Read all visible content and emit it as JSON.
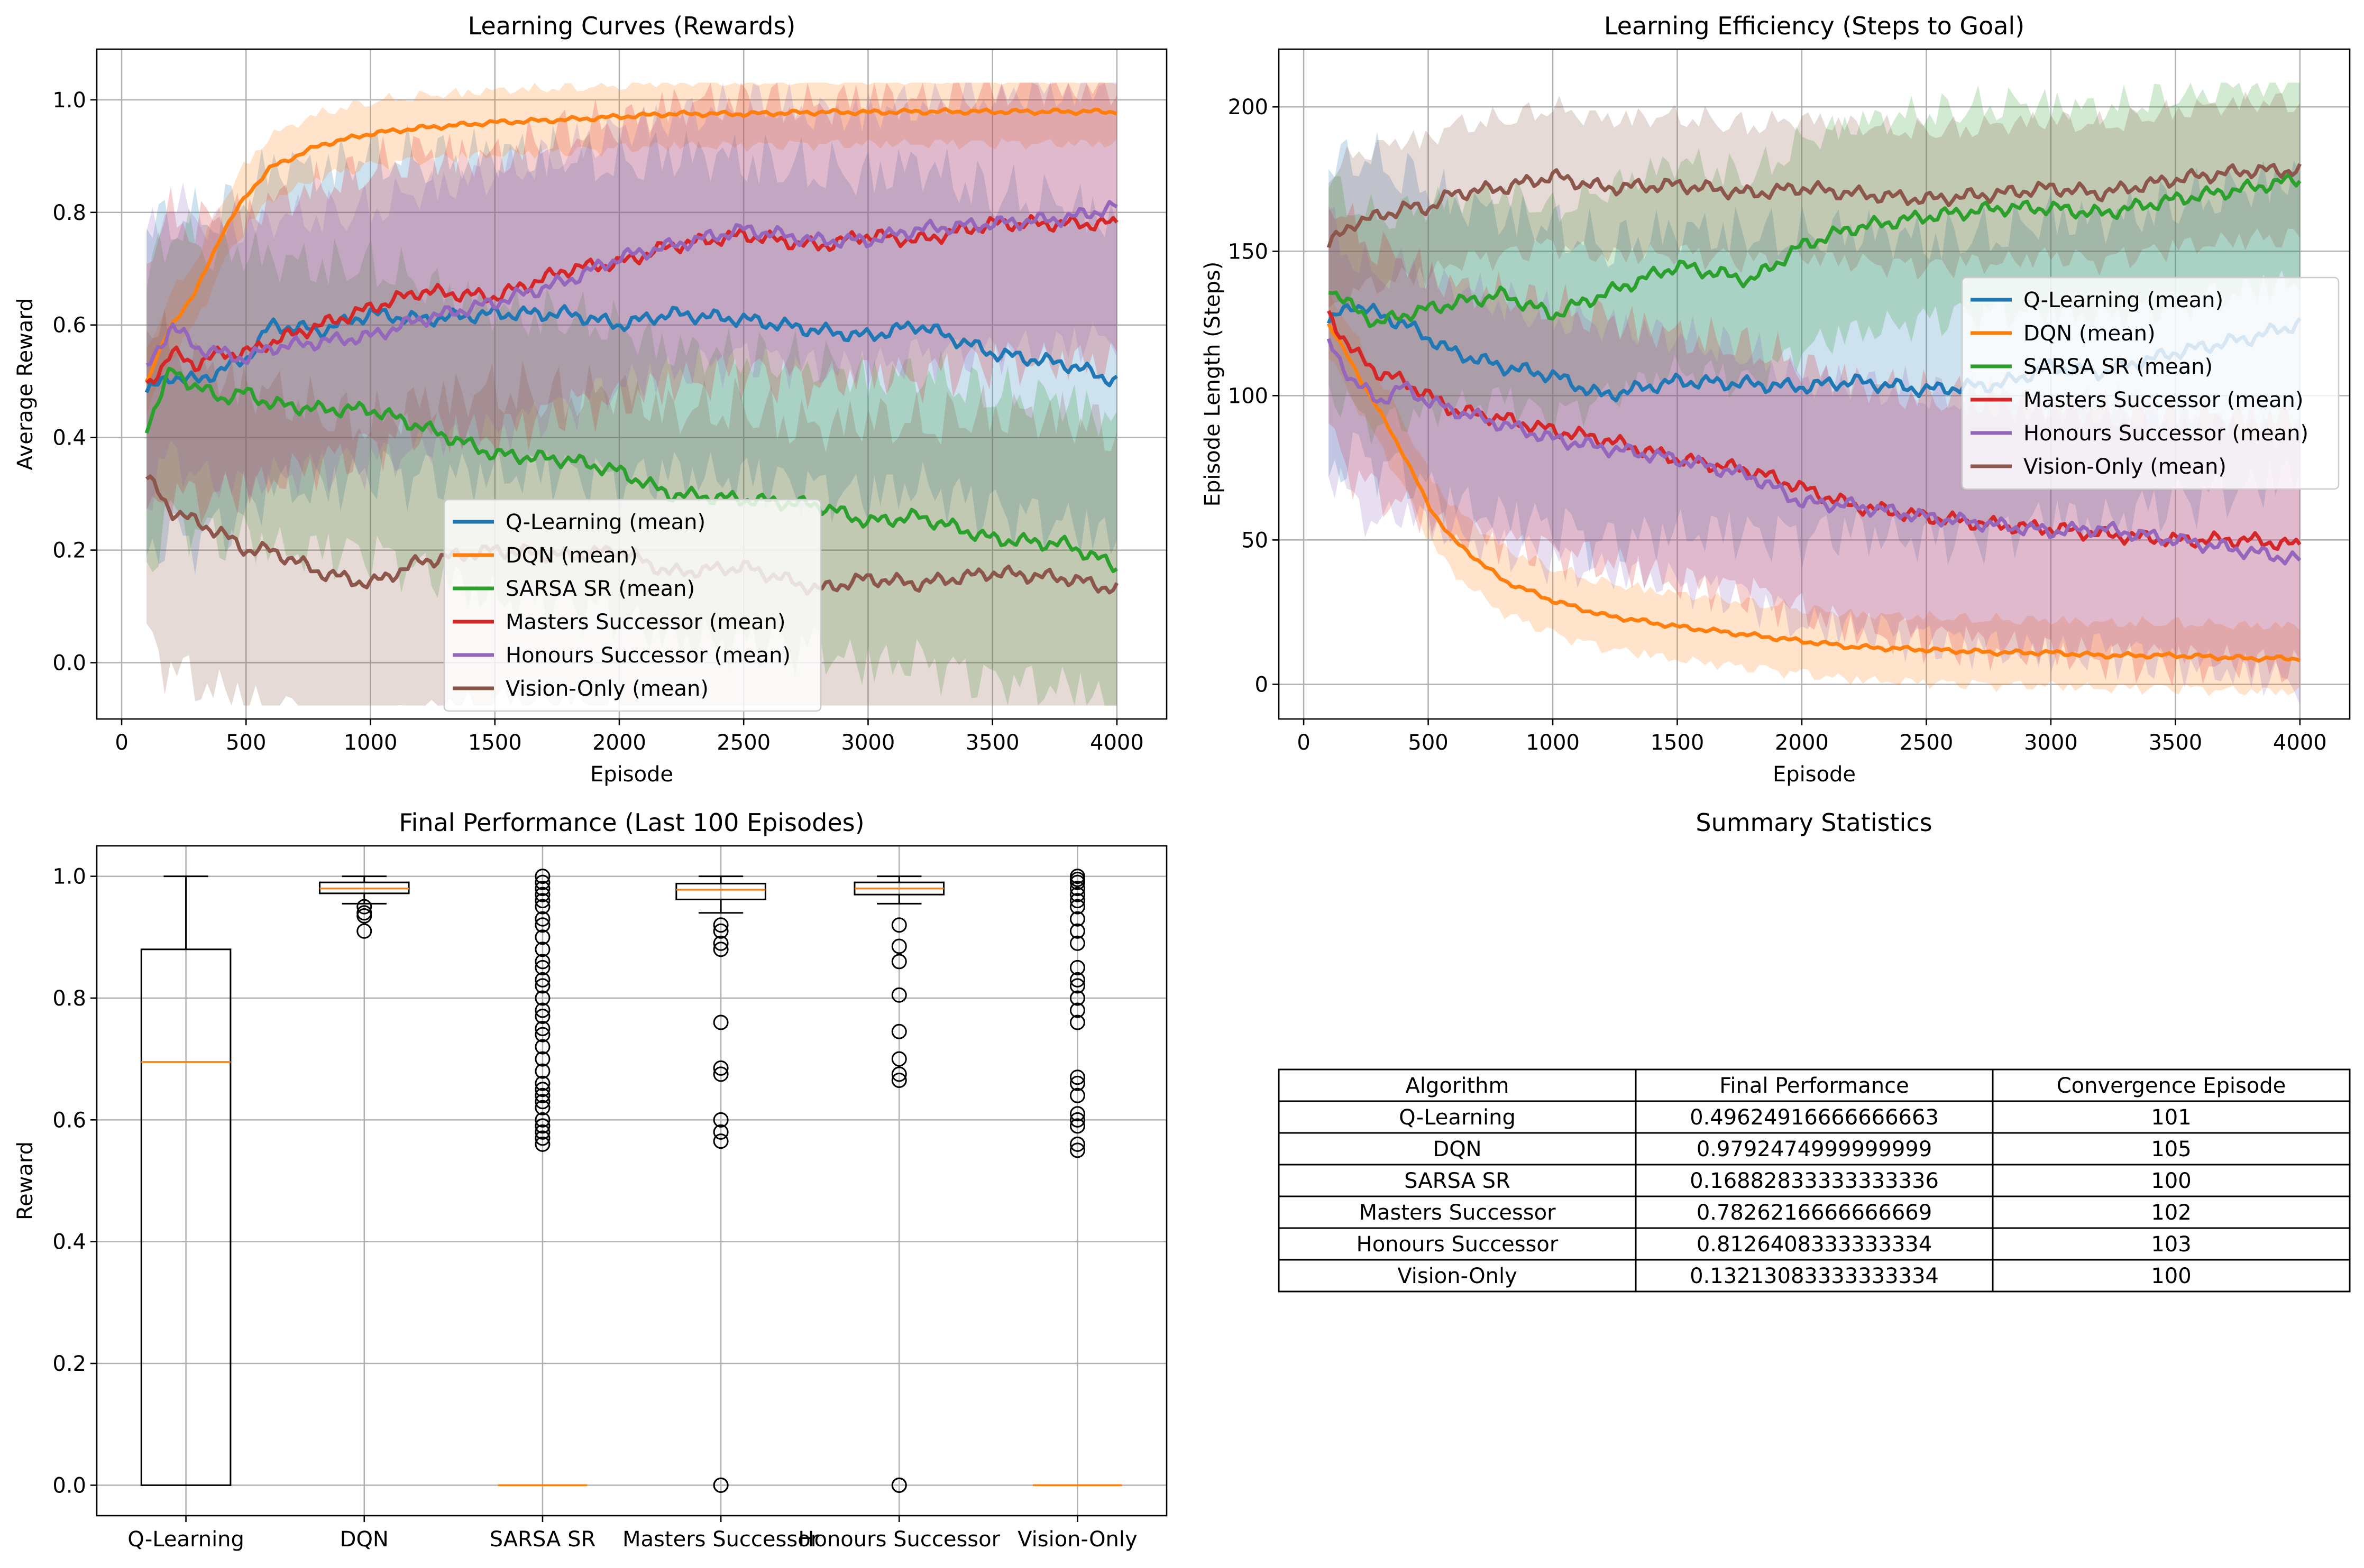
{
  "colors": {
    "q": "#1f77b4",
    "dqn": "#ff7f0e",
    "sarsa": "#2ca02c",
    "masters": "#d62728",
    "honours": "#9467bd",
    "vision": "#8c564b",
    "median": "#ff7f0e",
    "grid": "#b0b0b0"
  },
  "chart_data": [
    {
      "type": "line",
      "title": "Learning Curves (Rewards)",
      "xlabel": "Episode",
      "ylabel": "Average Reward",
      "xlim": [
        -100,
        4200
      ],
      "ylim": [
        -0.1,
        1.09
      ],
      "xticks": [
        0,
        500,
        1000,
        1500,
        2000,
        2500,
        3000,
        3500,
        4000
      ],
      "yticks": [
        0.0,
        0.2,
        0.4,
        0.6,
        0.8,
        1.0
      ],
      "grid": true,
      "legend_position": "lower-center",
      "x": [
        100,
        200,
        300,
        400,
        500,
        600,
        800,
        1000,
        1200,
        1500,
        1800,
        2000,
        2200,
        2500,
        2800,
        3000,
        3200,
        3500,
        3800,
        4000
      ],
      "series": [
        {
          "name": "Q-Learning (mean)",
          "key": "q",
          "values": [
            0.48,
            0.51,
            0.5,
            0.52,
            0.54,
            0.6,
            0.59,
            0.62,
            0.61,
            0.62,
            0.62,
            0.6,
            0.62,
            0.61,
            0.59,
            0.58,
            0.6,
            0.55,
            0.53,
            0.5
          ],
          "band": 0.3
        },
        {
          "name": "DQN (mean)",
          "key": "dqn",
          "values": [
            0.5,
            0.6,
            0.66,
            0.76,
            0.83,
            0.88,
            0.92,
            0.94,
            0.95,
            0.96,
            0.965,
            0.97,
            0.975,
            0.975,
            0.978,
            0.978,
            0.979,
            0.979,
            0.979,
            0.979
          ],
          "band": 0.06
        },
        {
          "name": "SARSA SR (mean)",
          "key": "sarsa",
          "values": [
            0.42,
            0.52,
            0.49,
            0.47,
            0.48,
            0.46,
            0.45,
            0.45,
            0.42,
            0.37,
            0.36,
            0.34,
            0.3,
            0.29,
            0.28,
            0.25,
            0.26,
            0.22,
            0.21,
            0.17
          ],
          "band": 0.27
        },
        {
          "name": "Masters Successor (mean)",
          "key": "masters",
          "values": [
            0.49,
            0.55,
            0.53,
            0.55,
            0.55,
            0.57,
            0.6,
            0.63,
            0.66,
            0.65,
            0.7,
            0.71,
            0.74,
            0.76,
            0.74,
            0.76,
            0.75,
            0.78,
            0.78,
            0.78
          ],
          "band": 0.26
        },
        {
          "name": "Honours Successor (mean)",
          "key": "honours",
          "values": [
            0.52,
            0.6,
            0.56,
            0.55,
            0.54,
            0.56,
            0.57,
            0.58,
            0.61,
            0.64,
            0.68,
            0.72,
            0.74,
            0.77,
            0.75,
            0.75,
            0.77,
            0.78,
            0.79,
            0.81
          ],
          "band": 0.24
        },
        {
          "name": "Vision-Only (mean)",
          "key": "vision",
          "values": [
            0.33,
            0.27,
            0.25,
            0.23,
            0.2,
            0.2,
            0.16,
            0.14,
            0.18,
            0.2,
            0.19,
            0.2,
            0.16,
            0.17,
            0.13,
            0.15,
            0.14,
            0.16,
            0.15,
            0.13
          ],
          "band": 0.3
        }
      ]
    },
    {
      "type": "line",
      "title": "Learning Efficiency (Steps to Goal)",
      "xlabel": "Episode",
      "ylabel": "Episode Length (Steps)",
      "xlim": [
        -100,
        4200
      ],
      "ylim": [
        -12,
        220
      ],
      "xticks": [
        0,
        500,
        1000,
        1500,
        2000,
        2500,
        3000,
        3500,
        4000
      ],
      "yticks": [
        0,
        50,
        100,
        150,
        200
      ],
      "grid": true,
      "legend_position": "right",
      "x": [
        100,
        200,
        300,
        400,
        500,
        600,
        800,
        1000,
        1200,
        1500,
        1800,
        2000,
        2200,
        2500,
        2800,
        3000,
        3200,
        3500,
        3800,
        4000
      ],
      "series": [
        {
          "name": "Q-Learning (mean)",
          "key": "q",
          "values": [
            125,
            132,
            128,
            125,
            120,
            115,
            110,
            107,
            100,
            105,
            104,
            103,
            105,
            102,
            104,
            110,
            108,
            115,
            120,
            125
          ],
          "band": 55
        },
        {
          "name": "DQN (mean)",
          "key": "dqn",
          "values": [
            125,
            110,
            95,
            80,
            62,
            50,
            36,
            29,
            24,
            20,
            17,
            15,
            13,
            12,
            11,
            11,
            10,
            10,
            9,
            9
          ],
          "band": 12
        },
        {
          "name": "SARSA SR (mean)",
          "key": "sarsa",
          "values": [
            138,
            130,
            125,
            128,
            130,
            132,
            135,
            128,
            135,
            145,
            140,
            152,
            158,
            162,
            165,
            165,
            163,
            168,
            172,
            175
          ],
          "band": 38
        },
        {
          "name": "Masters Successor (mean)",
          "key": "masters",
          "values": [
            128,
            115,
            108,
            105,
            100,
            95,
            92,
            88,
            85,
            78,
            74,
            68,
            62,
            58,
            55,
            54,
            52,
            50,
            50,
            48
          ],
          "band": 45
        },
        {
          "name": "Honours Successor (mean)",
          "key": "honours",
          "values": [
            118,
            105,
            98,
            103,
            98,
            95,
            90,
            85,
            82,
            78,
            72,
            63,
            62,
            58,
            55,
            53,
            54,
            50,
            46,
            43
          ],
          "band": 45
        },
        {
          "name": "Vision-Only (mean)",
          "key": "vision",
          "values": [
            152,
            160,
            162,
            165,
            165,
            170,
            172,
            176,
            172,
            173,
            170,
            172,
            170,
            168,
            170,
            172,
            170,
            175,
            178,
            178
          ],
          "band": 25
        }
      ]
    },
    {
      "type": "box",
      "title": "Final Performance (Last 100 Episodes)",
      "xlabel": "",
      "ylabel": "Reward",
      "ylim": [
        -0.05,
        1.05
      ],
      "yticks": [
        0.0,
        0.2,
        0.4,
        0.6,
        0.8,
        1.0
      ],
      "grid": true,
      "categories": [
        "Q-Learning",
        "DQN",
        "SARSA SR",
        "Masters Successor",
        "Honours Successor",
        "Vision-Only"
      ],
      "boxes": [
        {
          "q1": 0.0,
          "median": 0.695,
          "q3": 0.88,
          "whisker_low": 0.0,
          "whisker_high": 1.0,
          "outliers": []
        },
        {
          "q1": 0.972,
          "median": 0.98,
          "q3": 0.99,
          "whisker_low": 0.955,
          "whisker_high": 1.0,
          "outliers": [
            0.95,
            0.94,
            0.935,
            0.91
          ]
        },
        {
          "q1": 0.0,
          "median": 0.0,
          "q3": 0.0,
          "whisker_low": 0.0,
          "whisker_high": 0.0,
          "outliers": [
            1.0,
            0.99,
            0.98,
            0.97,
            0.96,
            0.95,
            0.93,
            0.92,
            0.9,
            0.88,
            0.86,
            0.85,
            0.83,
            0.82,
            0.8,
            0.78,
            0.77,
            0.75,
            0.74,
            0.72,
            0.7,
            0.68,
            0.66,
            0.65,
            0.64,
            0.63,
            0.62,
            0.6,
            0.59,
            0.58,
            0.57,
            0.56
          ]
        },
        {
          "q1": 0.962,
          "median": 0.978,
          "q3": 0.988,
          "whisker_low": 0.94,
          "whisker_high": 1.0,
          "outliers": [
            0.92,
            0.91,
            0.89,
            0.88,
            0.76,
            0.685,
            0.675,
            0.6,
            0.58,
            0.565,
            0.0,
            0.0
          ]
        },
        {
          "q1": 0.97,
          "median": 0.98,
          "q3": 0.99,
          "whisker_low": 0.955,
          "whisker_high": 1.0,
          "outliers": [
            0.92,
            0.885,
            0.86,
            0.805,
            0.745,
            0.7,
            0.675,
            0.665,
            0.0,
            0.0
          ]
        },
        {
          "q1": 0.0,
          "median": 0.0,
          "q3": 0.0,
          "whisker_low": 0.0,
          "whisker_high": 0.0,
          "outliers": [
            1.0,
            0.995,
            0.99,
            0.98,
            0.97,
            0.96,
            0.95,
            0.93,
            0.91,
            0.89,
            0.85,
            0.83,
            0.82,
            0.8,
            0.78,
            0.76,
            0.67,
            0.66,
            0.64,
            0.61,
            0.6,
            0.59,
            0.56,
            0.55
          ]
        }
      ]
    },
    {
      "type": "table",
      "title": "Summary Statistics",
      "columns": [
        "Algorithm",
        "Final Performance",
        "Convergence Episode"
      ],
      "rows": [
        [
          "Q-Learning",
          "0.49624916666666663",
          "101"
        ],
        [
          "DQN",
          "0.9792474999999999",
          "105"
        ],
        [
          "SARSA SR",
          "0.16882833333333336",
          "100"
        ],
        [
          "Masters Successor",
          "0.7826216666666669",
          "102"
        ],
        [
          "Honours Successor",
          "0.8126408333333334",
          "103"
        ],
        [
          "Vision-Only",
          "0.13213083333333334",
          "100"
        ]
      ]
    }
  ]
}
